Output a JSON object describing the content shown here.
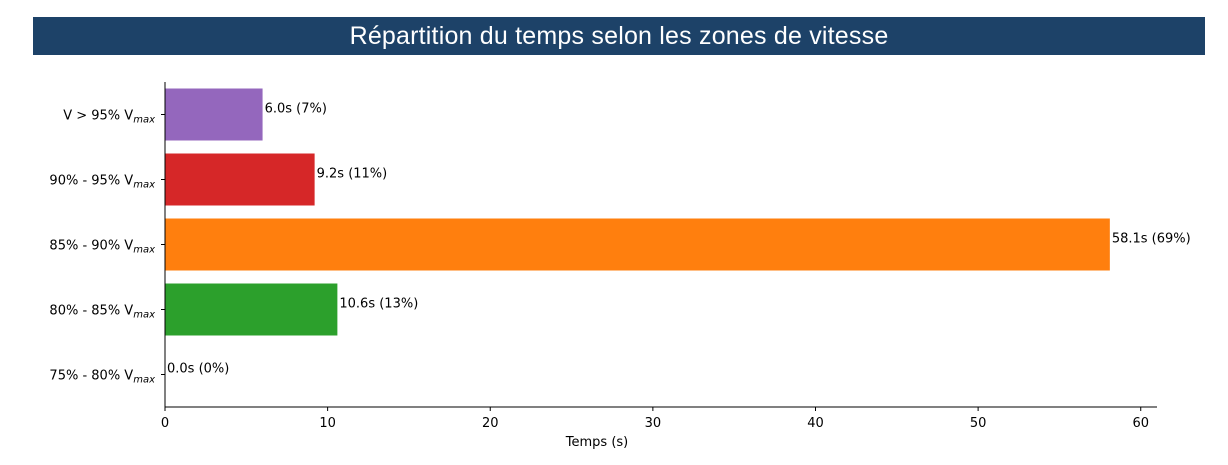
{
  "chart_data": {
    "type": "bar",
    "orientation": "horizontal",
    "title": "Répartition du temps selon les zones de vitesse",
    "xlabel": "Temps (s)",
    "ylabel": "",
    "xlim": [
      0,
      61
    ],
    "xticks": [
      0,
      10,
      20,
      30,
      40,
      50,
      60
    ],
    "categories": [
      {
        "main": "V > 95% V",
        "sub": "max"
      },
      {
        "main": "90% - 95% V",
        "sub": "max"
      },
      {
        "main": "85% - 90% V",
        "sub": "max"
      },
      {
        "main": "80% - 85% V",
        "sub": "max"
      },
      {
        "main": "75% - 80% V",
        "sub": "max"
      }
    ],
    "values": [
      6.0,
      9.2,
      58.1,
      10.6,
      0.0
    ],
    "data_labels": [
      "6.0s (7%)",
      "9.2s (11%)",
      "58.1s (69%)",
      "10.6s (13%)",
      "0.0s (0%)"
    ],
    "colors": [
      "#9467bd",
      "#d62728",
      "#ff7f0e",
      "#2ca02c",
      "#1f77b4"
    ],
    "grid": false,
    "title_background": "#1d4268"
  }
}
